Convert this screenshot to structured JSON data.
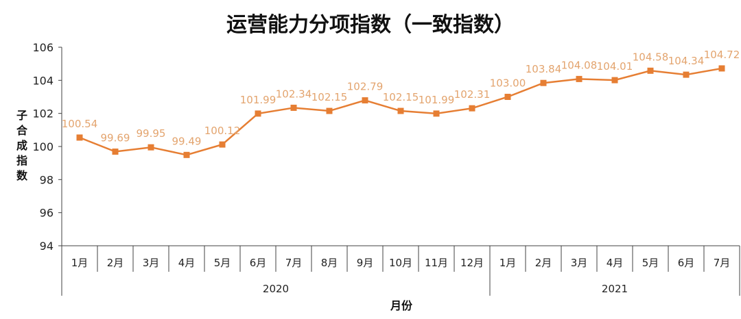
{
  "chart_data": {
    "type": "line",
    "title": "运营能力分项指数（一致指数）",
    "xlabel": "月份",
    "ylabel": "子合成指数",
    "ylim": [
      94,
      106
    ],
    "yticks": [
      94,
      96,
      98,
      100,
      102,
      104,
      106
    ],
    "categories": [
      "1月",
      "2月",
      "3月",
      "4月",
      "5月",
      "6月",
      "7月",
      "8月",
      "9月",
      "10月",
      "11月",
      "12月",
      "1月",
      "2月",
      "3月",
      "4月",
      "5月",
      "6月",
      "7月"
    ],
    "groups": [
      {
        "label": "2020",
        "count": 12
      },
      {
        "label": "2021",
        "count": 7
      }
    ],
    "series": [
      {
        "name": "运营能力分项指数",
        "values": [
          100.54,
          99.69,
          99.95,
          99.49,
          100.12,
          101.99,
          102.34,
          102.15,
          102.79,
          102.15,
          101.99,
          102.31,
          103.0,
          103.84,
          104.08,
          104.01,
          104.58,
          104.34,
          104.72
        ],
        "labels": [
          "100.54",
          "99.69",
          "99.95",
          "99.49",
          "100.12",
          "101.99",
          "102.34",
          "102.15",
          "102.79",
          "102.15",
          "101.99",
          "102.31",
          "103.00",
          "103.84",
          "104.08",
          "104.01",
          "104.58",
          "104.34",
          "104.72"
        ]
      }
    ],
    "grid": false,
    "legend": "none",
    "colors": {
      "line": "#e67e33",
      "label": "#e3a46e",
      "axis": "#404040"
    }
  }
}
